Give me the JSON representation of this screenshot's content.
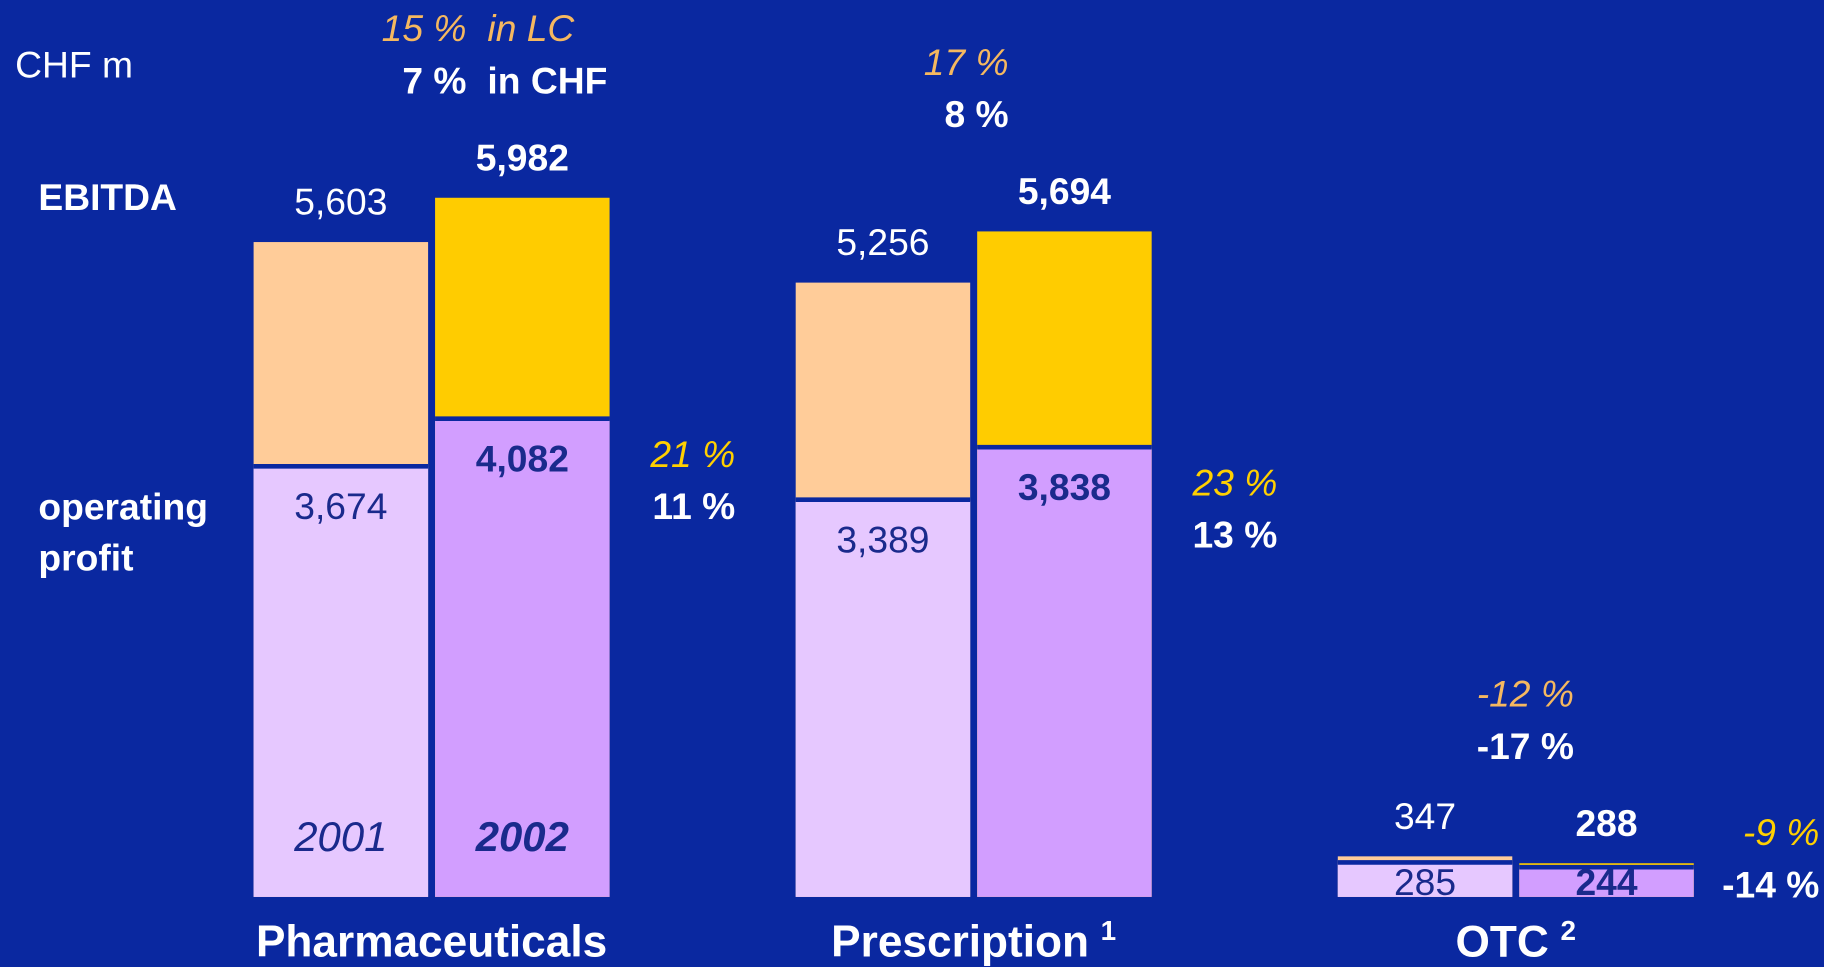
{
  "chart_data": {
    "type": "bar",
    "unit": "CHF m",
    "lc_label": "in LC",
    "chf_label": "in CHF",
    "series": [
      {
        "name": "EBITDA",
        "colors": [
          "#ffcc99",
          "#ffcc00"
        ]
      },
      {
        "name": "operating profit",
        "colors": [
          "#e6c8ff",
          "#d29eff"
        ]
      }
    ],
    "years": [
      "2001",
      "2002"
    ],
    "ylim": [
      0,
      6000
    ],
    "groups": [
      {
        "label": "Pharmaceuticals",
        "footnote": null,
        "ebitda": [
          5603,
          5982
        ],
        "ebitda_labels": [
          "5,603",
          "5,982"
        ],
        "op": [
          3674,
          4082
        ],
        "op_labels": [
          "3,674",
          "4,082"
        ],
        "ebitda_growth_lc": {
          "value": 15,
          "label": "15 %"
        },
        "ebitda_growth_chf": {
          "value": 7,
          "label": "7 %"
        },
        "op_growth_lc": {
          "value": 21,
          "label": "21 %"
        },
        "op_growth_chf": {
          "value": 11,
          "label": "11 %"
        }
      },
      {
        "label": "Prescription",
        "footnote": "1",
        "ebitda": [
          5256,
          5694
        ],
        "ebitda_labels": [
          "5,256",
          "5,694"
        ],
        "op": [
          3389,
          3838
        ],
        "op_labels": [
          "3,389",
          "3,838"
        ],
        "ebitda_growth_lc": {
          "value": 17,
          "label": "17 %"
        },
        "ebitda_growth_chf": {
          "value": 8,
          "label": "8 %"
        },
        "op_growth_lc": {
          "value": 23,
          "label": "23 %"
        },
        "op_growth_chf": {
          "value": 13,
          "label": "13 %"
        }
      },
      {
        "label": "OTC",
        "footnote": "2",
        "ebitda": [
          347,
          288
        ],
        "ebitda_labels": [
          "347",
          "288"
        ],
        "op": [
          285,
          244
        ],
        "op_labels": [
          "285",
          "244"
        ],
        "ebitda_growth_lc": {
          "value": -12,
          "label": "-12 %"
        },
        "ebitda_growth_chf": {
          "value": -17,
          "label": "-17 %"
        },
        "op_growth_lc": {
          "value": -9,
          "label": "-9 %"
        },
        "op_growth_chf": {
          "value": -14,
          "label": "-14 %"
        }
      }
    ]
  }
}
